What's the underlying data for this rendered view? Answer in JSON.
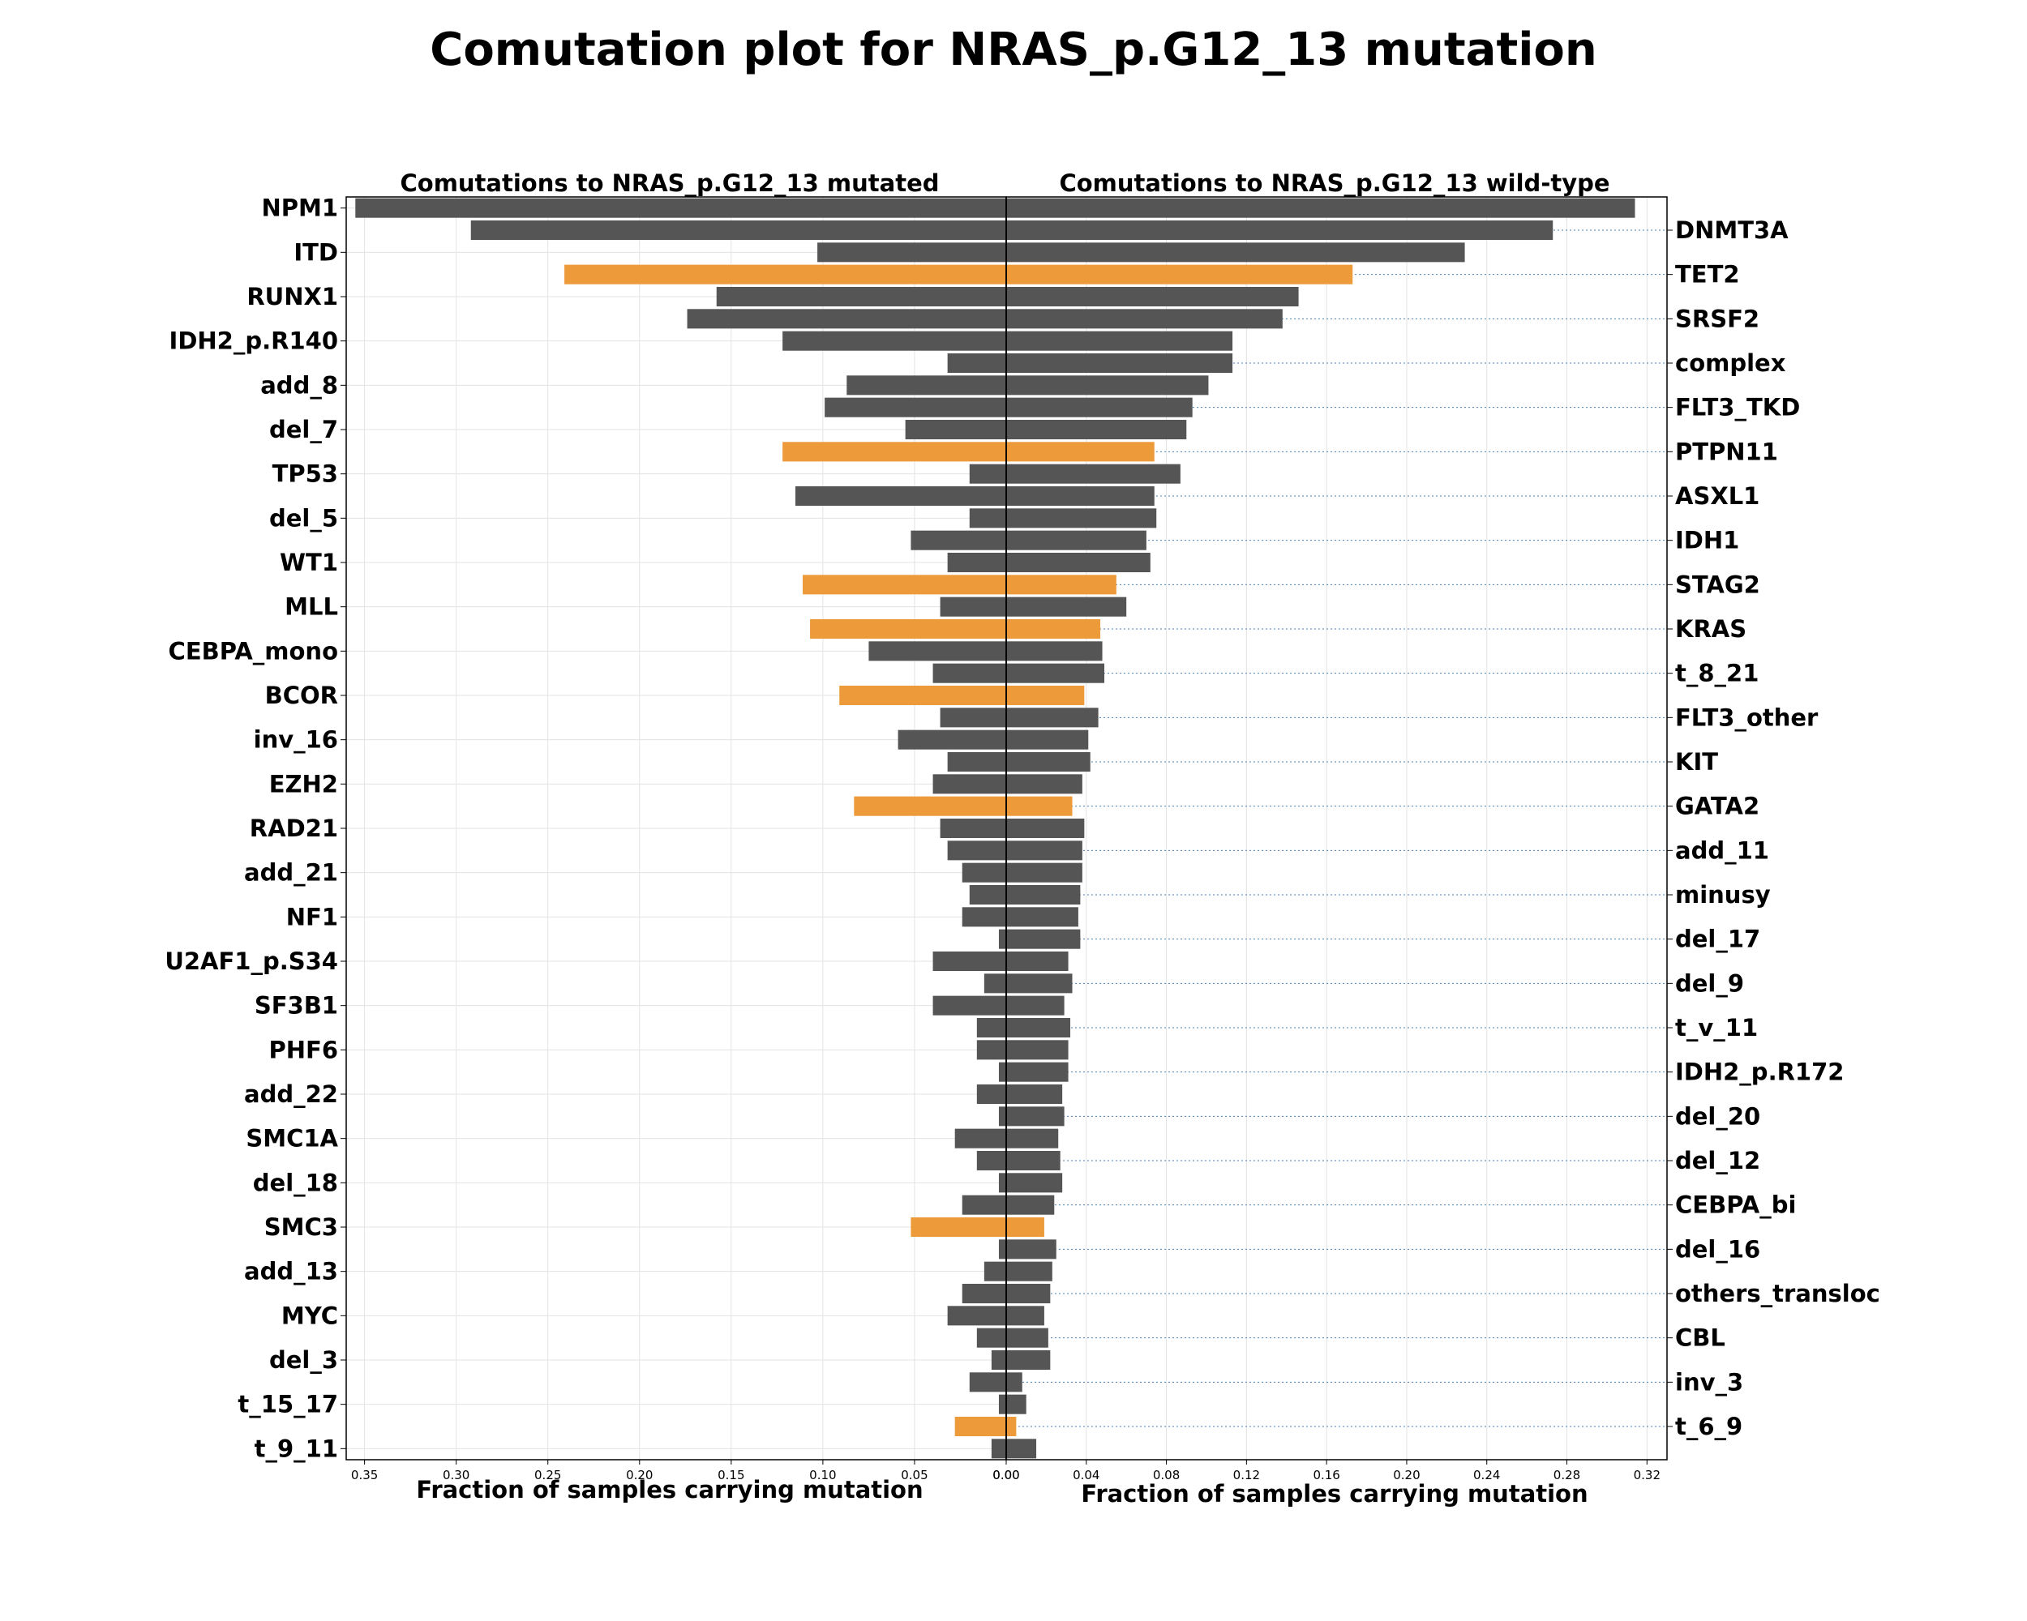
{
  "chart_data": {
    "type": "bar",
    "title": "Comutation plot for NRAS_p.G12_13 mutation",
    "colors": {
      "default": "#555555",
      "highlight": "#ED9A3A",
      "grid": "#e3e3e3",
      "dotted": "#4a7fb5"
    },
    "categories": [
      "NPM1",
      "DNMT3A",
      "ITD",
      "TET2",
      "RUNX1",
      "SRSF2",
      "IDH2_p.R140",
      "complex",
      "add_8",
      "FLT3_TKD",
      "del_7",
      "PTPN11",
      "TP53",
      "ASXL1",
      "del_5",
      "IDH1",
      "WT1",
      "STAG2",
      "MLL",
      "KRAS",
      "CEBPA_mono",
      "t_8_21",
      "BCOR",
      "FLT3_other",
      "inv_16",
      "KIT",
      "EZH2",
      "GATA2",
      "RAD21",
      "add_11",
      "add_21",
      "minusy",
      "NF1",
      "del_17",
      "U2AF1_p.S34",
      "del_9",
      "SF3B1",
      "t_v_11",
      "PHF6",
      "IDH2_p.R172",
      "add_22",
      "del_20",
      "SMC1A",
      "del_12",
      "del_18",
      "CEBPA_bi",
      "SMC3",
      "del_16",
      "add_13",
      "others_transloc",
      "MYC",
      "CBL",
      "del_3",
      "inv_3",
      "t_15_17",
      "t_6_9",
      "t_9_11"
    ],
    "highlighted": [
      "TET2",
      "PTPN11",
      "STAG2",
      "KRAS",
      "BCOR",
      "GATA2",
      "SMC3",
      "t_6_9"
    ],
    "left_labels": [
      "NPM1",
      "ITD",
      "RUNX1",
      "IDH2_p.R140",
      "add_8",
      "del_7",
      "TP53",
      "del_5",
      "WT1",
      "MLL",
      "CEBPA_mono",
      "BCOR",
      "inv_16",
      "EZH2",
      "RAD21",
      "add_21",
      "NF1",
      "U2AF1_p.S34",
      "SF3B1",
      "PHF6",
      "add_22",
      "SMC1A",
      "del_18",
      "SMC3",
      "add_13",
      "MYC",
      "del_3",
      "t_15_17",
      "t_9_11"
    ],
    "right_labels": [
      "DNMT3A",
      "TET2",
      "SRSF2",
      "complex",
      "FLT3_TKD",
      "PTPN11",
      "ASXL1",
      "IDH1",
      "STAG2",
      "KRAS",
      "t_8_21",
      "FLT3_other",
      "KIT",
      "GATA2",
      "add_11",
      "minusy",
      "del_17",
      "del_9",
      "t_v_11",
      "IDH2_p.R172",
      "del_20",
      "del_12",
      "CEBPA_bi",
      "del_16",
      "others_transloc",
      "CBL",
      "inv_3",
      "t_6_9"
    ],
    "left_panel": {
      "title": "Comutations to NRAS_p.G12_13 mutated",
      "xlabel": "Fraction of samples carrying mutation",
      "xlim": [
        0.36,
        0
      ],
      "ticks": [
        "0.35",
        "0.30",
        "0.25",
        "0.20",
        "0.15",
        "0.10",
        "0.05",
        "0.00"
      ],
      "tick_values": [
        0.35,
        0.3,
        0.25,
        0.2,
        0.15,
        0.1,
        0.05,
        0.0
      ],
      "values": [
        0.355,
        0.292,
        0.103,
        0.241,
        0.158,
        0.174,
        0.122,
        0.032,
        0.087,
        0.099,
        0.055,
        0.122,
        0.02,
        0.115,
        0.02,
        0.052,
        0.032,
        0.111,
        0.036,
        0.107,
        0.075,
        0.04,
        0.091,
        0.036,
        0.059,
        0.032,
        0.04,
        0.083,
        0.036,
        0.032,
        0.024,
        0.02,
        0.024,
        0.004,
        0.04,
        0.012,
        0.04,
        0.016,
        0.016,
        0.004,
        0.016,
        0.004,
        0.028,
        0.016,
        0.004,
        0.024,
        0.052,
        0.004,
        0.012,
        0.024,
        0.032,
        0.016,
        0.008,
        0.02,
        0.004,
        0.028,
        0.008
      ]
    },
    "right_panel": {
      "title": "Comutations to NRAS_p.G12_13 wild-type",
      "xlabel": "Fraction of samples carrying mutation",
      "xlim": [
        0,
        0.33
      ],
      "ticks": [
        "0.00",
        "0.04",
        "0.08",
        "0.12",
        "0.16",
        "0.20",
        "0.24",
        "0.28",
        "0.32"
      ],
      "tick_values": [
        0.0,
        0.04,
        0.08,
        0.12,
        0.16,
        0.2,
        0.24,
        0.28,
        0.32
      ],
      "values": [
        0.314,
        0.273,
        0.229,
        0.173,
        0.146,
        0.138,
        0.113,
        0.113,
        0.101,
        0.093,
        0.09,
        0.074,
        0.087,
        0.074,
        0.075,
        0.07,
        0.072,
        0.055,
        0.06,
        0.047,
        0.048,
        0.049,
        0.039,
        0.046,
        0.041,
        0.042,
        0.038,
        0.033,
        0.039,
        0.038,
        0.038,
        0.037,
        0.036,
        0.037,
        0.031,
        0.033,
        0.029,
        0.032,
        0.031,
        0.031,
        0.028,
        0.029,
        0.026,
        0.027,
        0.028,
        0.024,
        0.019,
        0.025,
        0.023,
        0.022,
        0.019,
        0.021,
        0.022,
        0.008,
        0.01,
        0.005,
        0.015
      ]
    }
  }
}
